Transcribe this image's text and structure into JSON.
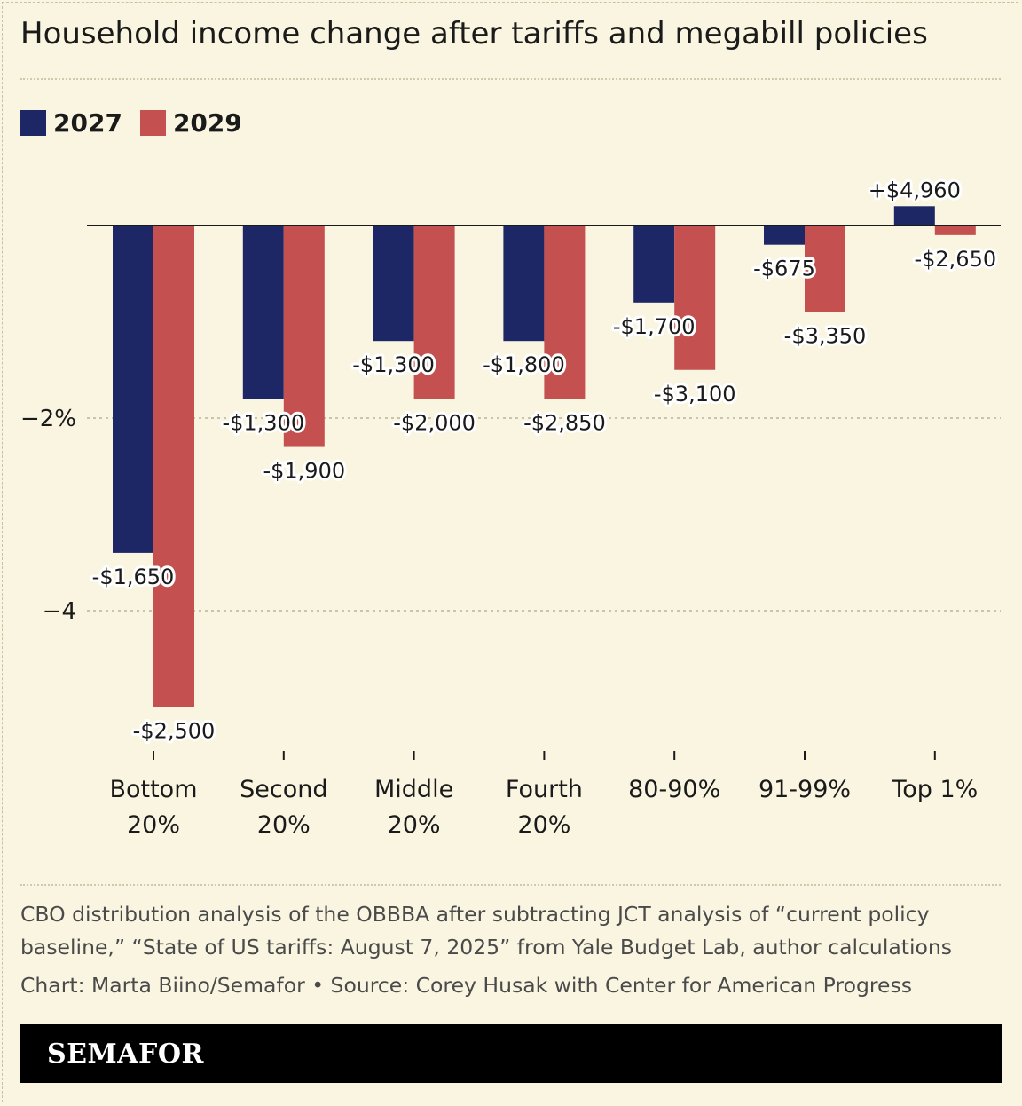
{
  "page": {
    "title": "Household income change after tariffs and megabill policies",
    "note": "CBO distribution analysis of the OBBBA after subtracting JCT analysis of “current policy baseline,” “State of US tariffs: August 7, 2025” from Yale Budget Lab, author calculations",
    "credit": "Chart: Marta Biino/Semafor • Source: Corey Husak with Center for American Progress",
    "brand": "SEMAFOR"
  },
  "colors": {
    "s2027": "#1e2766",
    "s2029": "#c4504f",
    "background": "#f9f5e0"
  },
  "chart_data": {
    "type": "bar",
    "title": "Household income change after tariffs and megabill policies",
    "xlabel": "",
    "ylabel": "",
    "ylim": [
      -5.0,
      0.3
    ],
    "yticks": [
      {
        "value": -2,
        "label": "−2%"
      },
      {
        "value": -4,
        "label": "−4"
      }
    ],
    "categories": [
      [
        "Bottom",
        "20%"
      ],
      [
        "Second",
        "20%"
      ],
      [
        "Middle",
        "20%"
      ],
      [
        "Fourth",
        "20%"
      ],
      [
        "80-90%"
      ],
      [
        "91-99%"
      ],
      [
        "Top 1%"
      ]
    ],
    "series": [
      {
        "name": "2027",
        "values": [
          -3.4,
          -1.8,
          -1.2,
          -1.2,
          -0.8,
          -0.2,
          0.2
        ],
        "labels": [
          "-$1,650",
          "-$1,300",
          "-$1,300",
          "-$1,800",
          "-$1,700",
          "-$675",
          "+$4,960"
        ]
      },
      {
        "name": "2029",
        "values": [
          -5.0,
          -2.3,
          -1.8,
          -1.8,
          -1.5,
          -0.9,
          -0.1
        ],
        "labels": [
          "-$2,500",
          "-$1,900",
          "-$2,000",
          "-$2,850",
          "-$3,100",
          "-$3,350",
          "-$2,650"
        ]
      }
    ],
    "legend_position": "top-left"
  }
}
